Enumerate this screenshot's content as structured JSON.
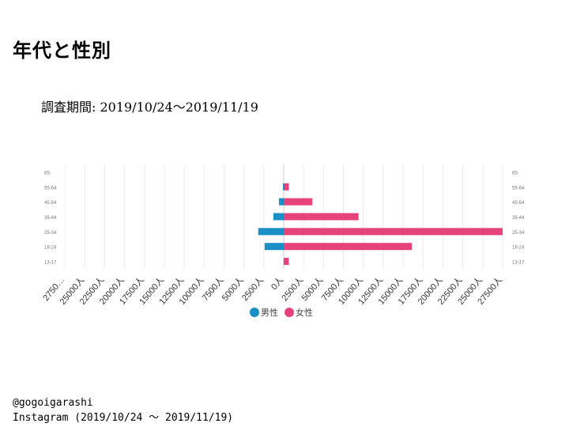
{
  "page": {
    "title": "年代と性別",
    "period": "調査期間: 2019/10/24～2019/11/19",
    "footer": {
      "handle": "@gogoigarashi",
      "source": "Instagram (2019/10/24 〜 2019/11/19)"
    }
  },
  "colors": {
    "male": "#1a8fc5",
    "female": "#e6437b"
  },
  "chart_data": {
    "type": "bar",
    "orientation": "horizontal",
    "layout": "population-pyramid",
    "title": "",
    "categories": [
      "65-",
      "55-64",
      "45-54",
      "35-44",
      "25-34",
      "18-24",
      "13-17"
    ],
    "categories_right": [
      "65-",
      "55-64",
      "45-54",
      "35-44",
      "25-34",
      "18-24",
      "13-17"
    ],
    "series": [
      {
        "name": "男性",
        "values": [
          0,
          100,
          600,
          1300,
          3200,
          2400,
          0
        ]
      },
      {
        "name": "女性",
        "values": [
          0,
          650,
          3600,
          9400,
          27500,
          16100,
          650
        ]
      }
    ],
    "xlim": [
      -27500,
      27500
    ],
    "x_tick_labels": [
      "2750…",
      "25000人",
      "22500人",
      "20000人",
      "17500人",
      "15000人",
      "12500人",
      "10000人",
      "7500人",
      "5000人",
      "2500人",
      "0人",
      "2500人",
      "5000人",
      "7500人",
      "10000人",
      "12500人",
      "15000人",
      "17500人",
      "20000人",
      "22500人",
      "25000人",
      "27500人"
    ],
    "grid": true,
    "legend": "bottom-center"
  }
}
